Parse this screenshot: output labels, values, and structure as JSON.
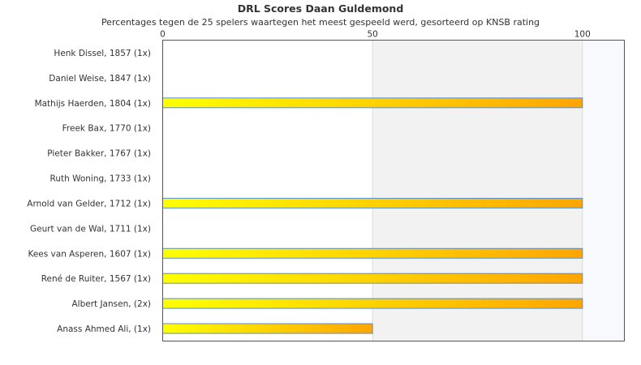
{
  "chart_data": {
    "type": "bar",
    "orientation": "horizontal",
    "title": "DRL Scores Daan Guldemond",
    "subtitle": "Percentages tegen de 25 spelers waartegen het meest gespeeld werd, gesorteerd op KNSB rating",
    "xlim": [
      0,
      110
    ],
    "xticks": [
      0,
      50,
      100
    ],
    "categories": [
      "Henk Dissel, 1857 (1x)",
      "Daniel Weise, 1847 (1x)",
      "Mathijs Haerden, 1804 (1x)",
      "Freek Bax, 1770 (1x)",
      "Pieter Bakker, 1767 (1x)",
      "Ruth Woning, 1733 (1x)",
      "Arnold van Gelder, 1712 (1x)",
      "Geurt van de Wal, 1711 (1x)",
      "Kees van Asperen, 1607 (1x)",
      "René de Ruiter, 1567 (1x)",
      "Albert Jansen,  (2x)",
      "Anass Ahmed Ali,  (1x)"
    ],
    "values": [
      0,
      0,
      100,
      0,
      0,
      0,
      100,
      0,
      100,
      100,
      100,
      50
    ],
    "bar_colors": [
      "#ffff00",
      "#ffa500"
    ],
    "band_colors": [
      "#ffffff",
      "#f2f2f2",
      "#f7f9fc"
    ],
    "grid": true
  }
}
